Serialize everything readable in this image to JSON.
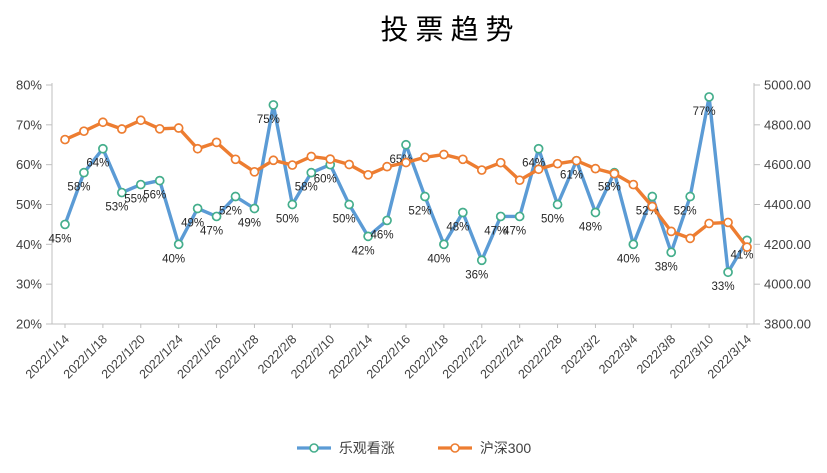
{
  "title": "投票趋势",
  "colors": {
    "bullish_line": "#5B9BD5",
    "bullish_marker": "#45AE8C",
    "index_line": "#ED7D31",
    "index_marker": "#ED7D31",
    "axis_line": "#BFBFBF",
    "axis_text": "#404040",
    "data_label_text": "#262626",
    "background": "#FFFFFF"
  },
  "chart_data": {
    "type": "line",
    "title": "投票趋势",
    "grid": false,
    "legend_position": "bottom",
    "x_axis": {
      "n_points": 37,
      "tick_indices": [
        0,
        2,
        4,
        6,
        8,
        10,
        12,
        14,
        16,
        18,
        20,
        22,
        24,
        26,
        28,
        30,
        32,
        34,
        36
      ],
      "tick_labels": [
        "2022/1/14",
        "2022/1/18",
        "2022/1/20",
        "2022/1/24",
        "2022/1/26",
        "2022/1/28",
        "2022/2/8",
        "2022/2/10",
        "2022/2/14",
        "2022/2/16",
        "2022/2/18",
        "2022/2/22",
        "2022/2/24",
        "2022/2/28",
        "2022/3/2",
        "2022/3/4",
        "2022/3/8",
        "2022/3/10",
        "2022/3/14"
      ]
    },
    "left_axis": {
      "min": 20,
      "max": 80,
      "ticks": [
        "80%",
        "70%",
        "60%",
        "50%",
        "40%",
        "30%",
        "20%"
      ]
    },
    "right_axis": {
      "min": 3800,
      "max": 5000,
      "ticks": [
        "5000.00",
        "4800.00",
        "4600.00",
        "4400.00",
        "4200.00",
        "4000.00",
        "3800.00"
      ]
    },
    "series": [
      {
        "name": "乐观看涨",
        "axis": "left",
        "color": "#5B9BD5",
        "marker_stroke": "#45AE8C",
        "data_labels": true,
        "label_suffix": "%",
        "values": [
          45,
          58,
          64,
          53,
          55,
          56,
          40,
          49,
          47,
          52,
          49,
          75,
          50,
          58,
          60,
          50,
          42,
          46,
          65,
          52,
          40,
          48,
          36,
          47,
          47,
          64,
          50,
          61,
          48,
          58,
          40,
          52,
          38,
          52,
          77,
          33,
          41
        ]
      },
      {
        "name": "沪深300",
        "axis": "right",
        "color": "#ED7D31",
        "marker_stroke": "#ED7D31",
        "data_labels": false,
        "label_suffix": "",
        "values": [
          4726,
          4768,
          4813,
          4779,
          4823,
          4780,
          4784,
          4680,
          4712,
          4627,
          4564,
          4622,
          4598,
          4641,
          4628,
          4601,
          4549,
          4590,
          4611,
          4637,
          4651,
          4627,
          4573,
          4610,
          4522,
          4577,
          4605,
          4620,
          4580,
          4555,
          4500,
          4390,
          4265,
          4230,
          4305,
          4310,
          4186
        ]
      }
    ]
  }
}
